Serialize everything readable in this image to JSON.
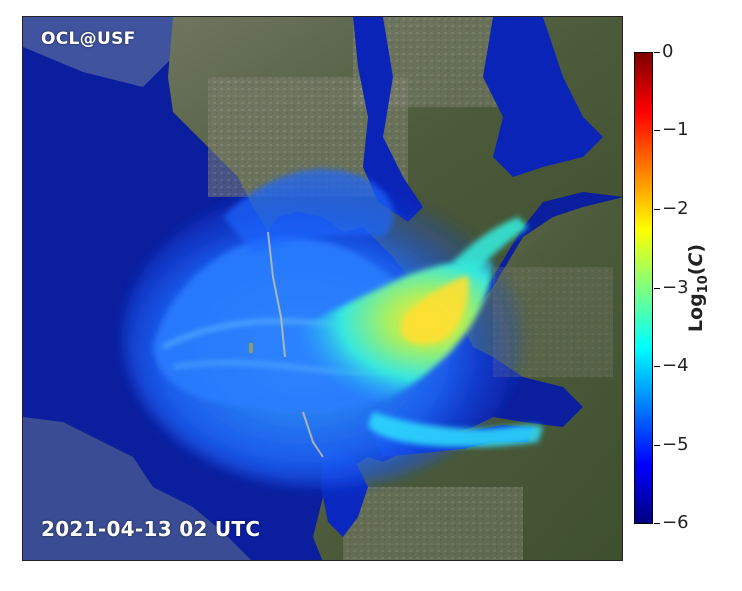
{
  "map": {
    "brand": "OCL@USF",
    "timestamp": "2021-04-13 02 UTC"
  },
  "colorbar": {
    "label_prefix": "Log",
    "label_subscript": "10",
    "label_var": "C",
    "range": [
      -6,
      0
    ],
    "ticks": [
      "0",
      "−1",
      "−2",
      "−3",
      "−4",
      "−5",
      "−6"
    ],
    "colormap": "jet",
    "colors": [
      "#00007f",
      "#0000ff",
      "#007fff",
      "#00ffff",
      "#7fff7f",
      "#ffff00",
      "#ff7f00",
      "#ff0000",
      "#7f0000"
    ]
  },
  "palette": {
    "gulf_water": "#0a1e9e",
    "land": "#4d5a3c"
  }
}
